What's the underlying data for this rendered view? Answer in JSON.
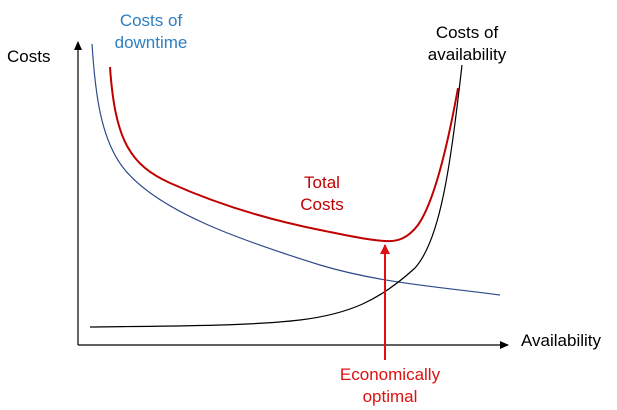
{
  "axes": {
    "y_label": "Costs",
    "x_label": "Availability"
  },
  "curves": {
    "downtime": {
      "label_line1": "Costs of",
      "label_line2": "downtime",
      "color": "#2f4a8a",
      "label_color": "#2e7fc1"
    },
    "availability": {
      "label_line1": "Costs of",
      "label_line2": "availability",
      "color": "#000000"
    },
    "total": {
      "label_line1": "Total",
      "label_line2": "Costs",
      "color": "#c00000"
    }
  },
  "optimum": {
    "label_line1": "Economically",
    "label_line2": "optimal",
    "color": "#e01010"
  }
}
